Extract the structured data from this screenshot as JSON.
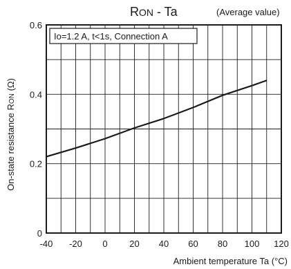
{
  "chart_data": {
    "type": "line",
    "title": {
      "main": "R",
      "sub": "ON",
      "rest": " - Ta"
    },
    "subtitle": "(Average value)",
    "annotation": "Io=1.2 A, t<1s, Connection A",
    "xlabel": "Ambient temperature Ta (°C)",
    "ylabel": {
      "pre": "On-state resistance R",
      "sub": "ON",
      "post": " (Ω)"
    },
    "xlim": [
      -40,
      120
    ],
    "ylim": [
      0,
      0.6
    ],
    "x_ticks": [
      "-40",
      "-20",
      "0",
      "20",
      "40",
      "60",
      "80",
      "100",
      "120"
    ],
    "y_ticks": [
      "0",
      "0.2",
      "0.4",
      "0.6"
    ],
    "grid": true,
    "series": [
      {
        "x": [
          -40,
          -20,
          0,
          20,
          40,
          60,
          80,
          100,
          110
        ],
        "y": [
          0.22,
          0.245,
          0.272,
          0.303,
          0.33,
          0.362,
          0.397,
          0.425,
          0.44
        ]
      }
    ]
  }
}
